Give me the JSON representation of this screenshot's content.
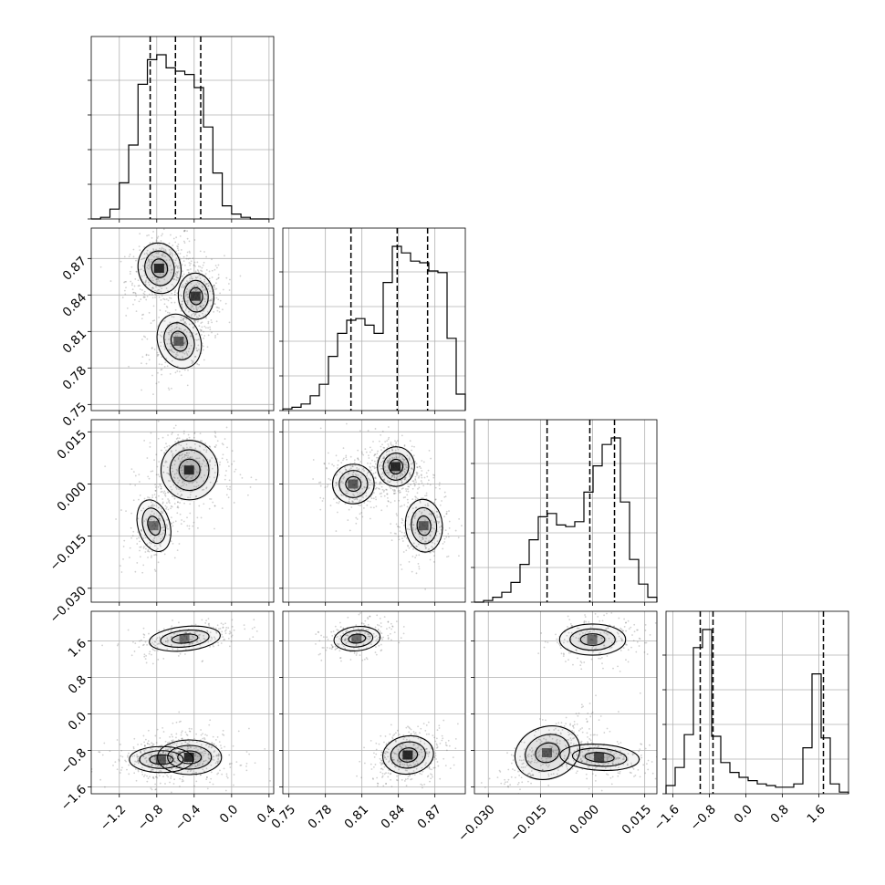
{
  "chart_data": {
    "type": "corner",
    "title": "",
    "grid": true,
    "parameters": [
      {
        "range": [
          -1.5,
          0.45
        ],
        "ticks": [
          -1.2,
          -0.8,
          -0.4,
          0.0,
          0.4
        ],
        "tick_labels": [
          "−1.2",
          "−0.8",
          "−0.4",
          "0.0",
          "0.4"
        ],
        "quantiles": [
          -0.87,
          -0.6,
          -0.33
        ],
        "histogram": {
          "bin_edges": [
            -1.5,
            -1.4,
            -1.3,
            -1.2,
            -1.1,
            -1.0,
            -0.9,
            -0.8,
            -0.7,
            -0.6,
            -0.5,
            -0.4,
            -0.3,
            -0.2,
            -0.1,
            0.0,
            0.1,
            0.2,
            0.3,
            0.4
          ],
          "counts": [
            0.0,
            0.01,
            0.06,
            0.22,
            0.45,
            0.82,
            0.97,
            1.0,
            0.92,
            0.9,
            0.88,
            0.8,
            0.56,
            0.28,
            0.08,
            0.03,
            0.01,
            0.0,
            0.0
          ]
        },
        "modes": [
          {
            "c": -0.78,
            "w": 0.14,
            "a": 0.55
          },
          {
            "c": -0.38,
            "w": 0.14,
            "a": 0.5
          },
          {
            "c": -0.55,
            "w": 0.15,
            "a": 0.4
          }
        ]
      },
      {
        "range": [
          0.745,
          0.895
        ],
        "ticks": [
          0.75,
          0.78,
          0.81,
          0.84,
          0.87
        ],
        "tick_labels": [
          "0.75",
          "0.78",
          "0.81",
          "0.84",
          "0.87"
        ],
        "quantiles": [
          0.801,
          0.839,
          0.864
        ],
        "histogram": {
          "bin_edges": [
            0.745,
            0.7525,
            0.76,
            0.7675,
            0.775,
            0.7825,
            0.79,
            0.7975,
            0.805,
            0.8125,
            0.82,
            0.8275,
            0.835,
            0.8425,
            0.85,
            0.8575,
            0.865,
            0.8725,
            0.88,
            0.8875,
            0.895
          ],
          "counts": [
            0.01,
            0.02,
            0.04,
            0.09,
            0.16,
            0.33,
            0.47,
            0.55,
            0.56,
            0.52,
            0.47,
            0.78,
            1.0,
            0.96,
            0.91,
            0.9,
            0.85,
            0.84,
            0.44,
            0.1
          ]
        },
        "modes": [
          {
            "c": 0.861,
            "w": 0.011,
            "a": 0.55
          },
          {
            "c": 0.838,
            "w": 0.011,
            "a": 0.5
          },
          {
            "c": 0.805,
            "w": 0.012,
            "a": 0.45
          }
        ]
      },
      {
        "range": [
          -0.034,
          0.0185
        ],
        "ticks": [
          -0.03,
          -0.015,
          0.0,
          0.015
        ],
        "tick_labels": [
          "−0.030",
          "−0.015",
          "0.000",
          "0.015"
        ],
        "quantiles": [
          -0.0131,
          -0.0008,
          0.0063
        ],
        "histogram": {
          "bin_edges": [
            -0.034,
            -0.03138,
            -0.02875,
            -0.02613,
            -0.0235,
            -0.02088,
            -0.01825,
            -0.01563,
            -0.013,
            -0.01038,
            -0.00775,
            -0.00513,
            -0.0025,
            0.00013,
            0.00275,
            0.00538,
            0.008,
            0.01063,
            0.01325,
            0.01588,
            0.0185
          ],
          "counts": [
            0.0,
            0.01,
            0.03,
            0.06,
            0.12,
            0.23,
            0.38,
            0.52,
            0.54,
            0.47,
            0.46,
            0.49,
            0.67,
            0.83,
            0.96,
            1.0,
            0.61,
            0.26,
            0.11,
            0.03
          ]
        },
        "modes": [
          {
            "c": 0.0035,
            "w": 0.003,
            "a": 0.55
          },
          {
            "c": -0.013,
            "w": 0.003,
            "a": 0.4
          },
          {
            "c": -0.011,
            "w": 0.003,
            "a": 0.3
          }
        ]
      },
      {
        "range": [
          -1.75,
          2.25
        ],
        "ticks": [
          -1.6,
          -0.8,
          0.0,
          0.8,
          1.6
        ],
        "tick_labels": [
          "−1.6",
          "−0.8",
          "0.0",
          "0.8",
          "1.6"
        ],
        "quantiles": [
          -1.0,
          -0.72,
          1.7
        ],
        "histogram": {
          "bin_edges": [
            -1.75,
            -1.55,
            -1.35,
            -1.15,
            -0.95,
            -0.75,
            -0.55,
            -0.35,
            -0.15,
            0.05,
            0.25,
            0.45,
            0.65,
            0.85,
            1.05,
            1.25,
            1.45,
            1.65,
            1.85,
            2.05,
            2.25
          ],
          "counts": [
            0.05,
            0.16,
            0.36,
            0.89,
            1.0,
            0.35,
            0.19,
            0.13,
            0.1,
            0.08,
            0.06,
            0.05,
            0.04,
            0.04,
            0.06,
            0.28,
            0.73,
            0.34,
            0.06,
            0.01
          ]
        },
        "modes": [
          {
            "c": -0.95,
            "w": 0.2,
            "a": 0.55
          },
          {
            "c": -0.95,
            "w": 0.2,
            "a": 0.3
          },
          {
            "c": 1.63,
            "w": 0.18,
            "a": 0.3
          }
        ]
      }
    ]
  }
}
